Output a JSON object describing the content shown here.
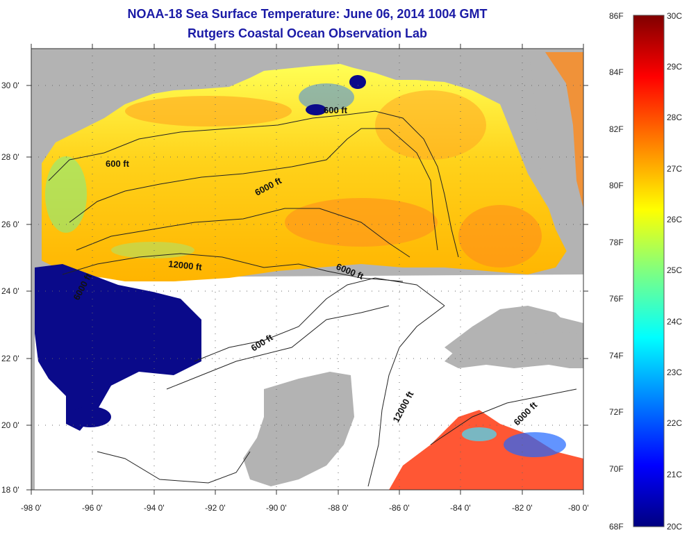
{
  "header": {
    "title": "NOAA-18 Sea Surface Temperature:  June 06, 2014 1004 GMT",
    "subtitle": "Rutgers Coastal Ocean Observation Lab"
  },
  "axes": {
    "longitude_ticks": [
      "-98 0'",
      "-96 0'",
      "-94 0'",
      "-92 0'",
      "-90 0'",
      "-88 0'",
      "-86 0'",
      "-84 0'",
      "-82 0'",
      "-80 0'"
    ],
    "latitude_ticks": [
      "30 0'",
      "28 0'",
      "26 0'",
      "24 0'",
      "22 0'",
      "20 0'",
      "18 0'"
    ],
    "lon_range": [
      -98,
      -80
    ],
    "lat_range": [
      18,
      31.3
    ]
  },
  "contours": {
    "labels": [
      "600 ft",
      "600 ft",
      "6000 ft",
      "12000 ft",
      "6000 ft",
      "6000 ft",
      "600 ft",
      "12000 ft",
      "6000 ft"
    ]
  },
  "colorbar": {
    "fahrenheit": [
      "86F",
      "84F",
      "82F",
      "80F",
      "78F",
      "76F",
      "74F",
      "72F",
      "70F",
      "68F"
    ],
    "celsius": [
      "30C",
      "29C",
      "28C",
      "27C",
      "26C",
      "25C",
      "24C",
      "23C",
      "22C",
      "21C",
      "20C"
    ],
    "range_f": [
      68,
      86
    ],
    "range_c": [
      20,
      30
    ],
    "colors": [
      "#000080",
      "#0000ff",
      "#0080ff",
      "#00ffff",
      "#80ff80",
      "#ffff00",
      "#ff8000",
      "#ff0000",
      "#800000"
    ]
  },
  "colors": {
    "land": "#b3b3b3",
    "no_data": "#ffffff",
    "title": "#1a1aa6"
  }
}
